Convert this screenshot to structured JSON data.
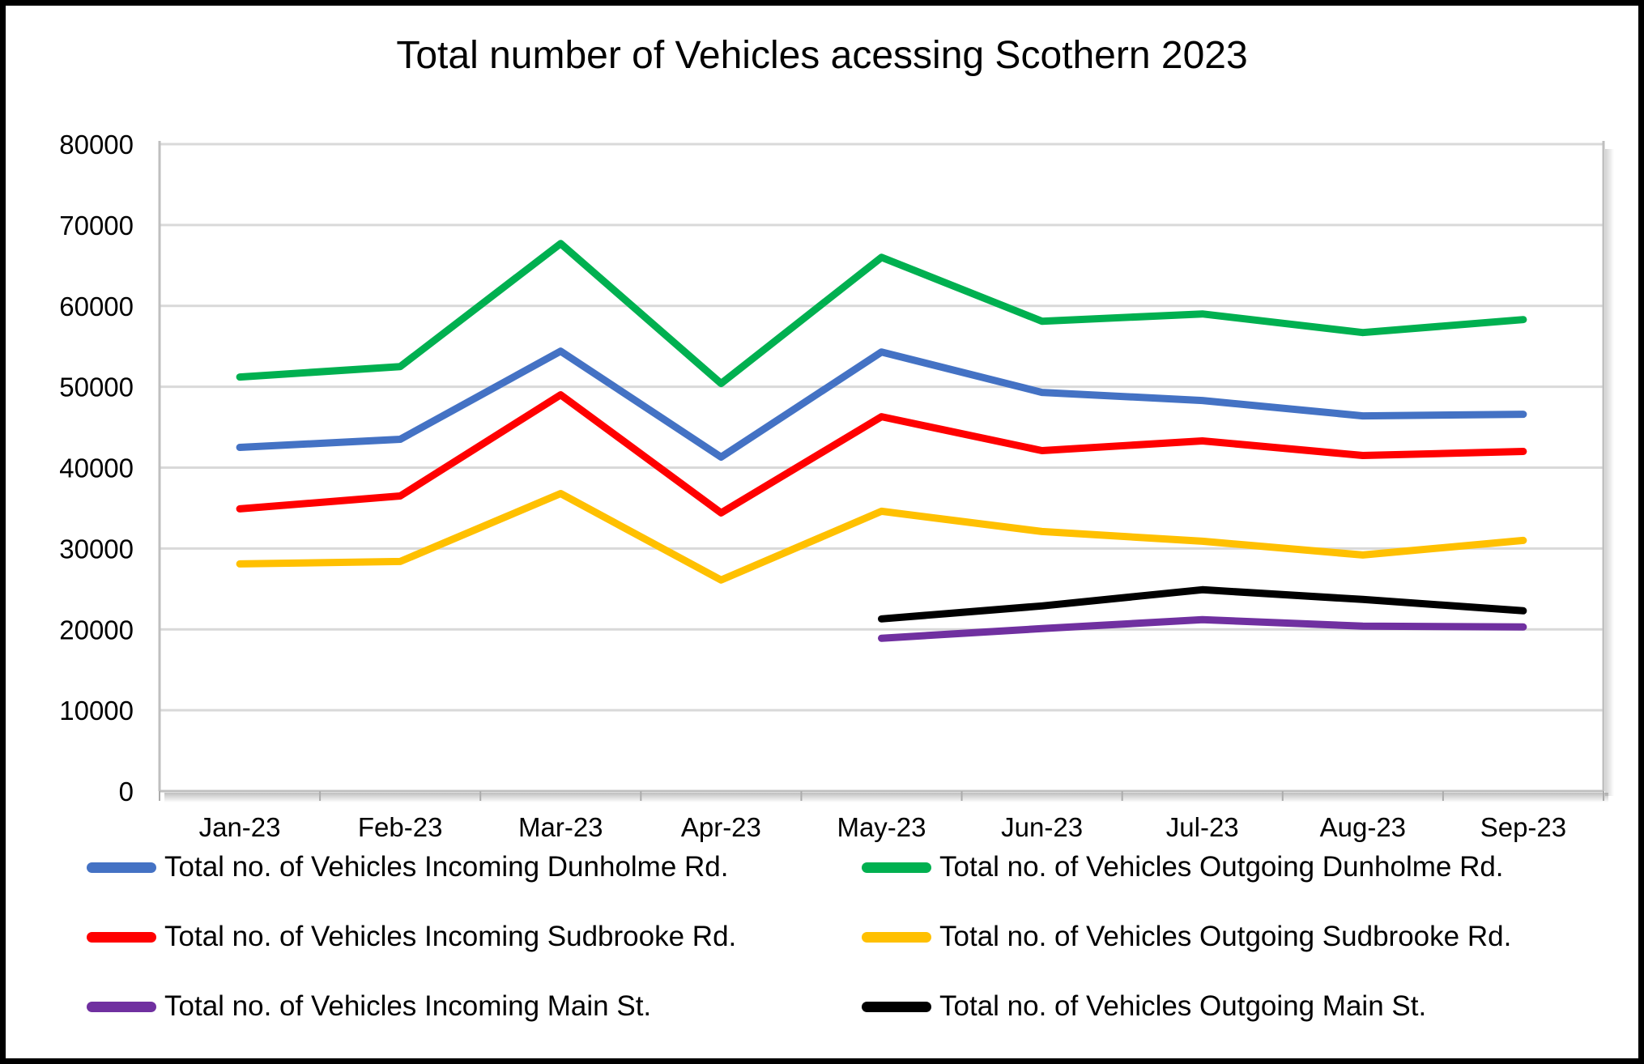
{
  "title": "Total number of Vehicles acessing Scothern 2023",
  "chart_data": {
    "type": "line",
    "title": "Total number of Vehicles acessing Scothern 2023",
    "categories": [
      "Jan-23",
      "Feb-23",
      "Mar-23",
      "Apr-23",
      "May-23",
      "Jun-23",
      "Jul-23",
      "Aug-23",
      "Sep-23"
    ],
    "series": [
      {
        "name": "Total no. of Vehicles Incoming Dunholme Rd.",
        "color": "#4472C4",
        "values": [
          42500,
          43500,
          54400,
          41300,
          54300,
          49300,
          48300,
          46400,
          46600
        ]
      },
      {
        "name": "Total no. of Vehicles Outgoing Dunholme Rd.",
        "color": "#00B050",
        "values": [
          51200,
          52500,
          67700,
          50400,
          66000,
          58100,
          59000,
          56700,
          58300
        ]
      },
      {
        "name": "Total no. of Vehicles Incoming Sudbrooke Rd.",
        "color": "#FF0000",
        "values": [
          34900,
          36500,
          49000,
          34400,
          46300,
          42100,
          43300,
          41500,
          42000
        ]
      },
      {
        "name": "Total no. of Vehicles Outgoing Sudbrooke Rd.",
        "color": "#FFC000",
        "values": [
          28100,
          28400,
          36800,
          26100,
          34600,
          32100,
          30900,
          29200,
          31000
        ]
      },
      {
        "name": "Total no. of Vehicles Incoming Main St.",
        "color": "#7030A0",
        "values": [
          null,
          null,
          null,
          null,
          18900,
          20100,
          21200,
          20400,
          20300
        ]
      },
      {
        "name": "Total no. of Vehicles Outgoing Main St.",
        "color": "#000000",
        "values": [
          null,
          null,
          null,
          null,
          21300,
          22900,
          24900,
          23700,
          22300
        ]
      }
    ],
    "y_axis": {
      "min": 0,
      "max": 80000,
      "tick_interval": 10000,
      "tick_labels": [
        "0",
        "10000",
        "20000",
        "30000",
        "40000",
        "50000",
        "60000",
        "70000",
        "80000"
      ]
    },
    "grid": true,
    "legend_position": "bottom",
    "colors": {
      "gridline": "#D9D9D9",
      "axis_line": "#BFBFBF",
      "tick_mark": "#ABABAB",
      "text": "#000000",
      "background": "#FFFFFF",
      "frame_border": "#000000"
    }
  }
}
